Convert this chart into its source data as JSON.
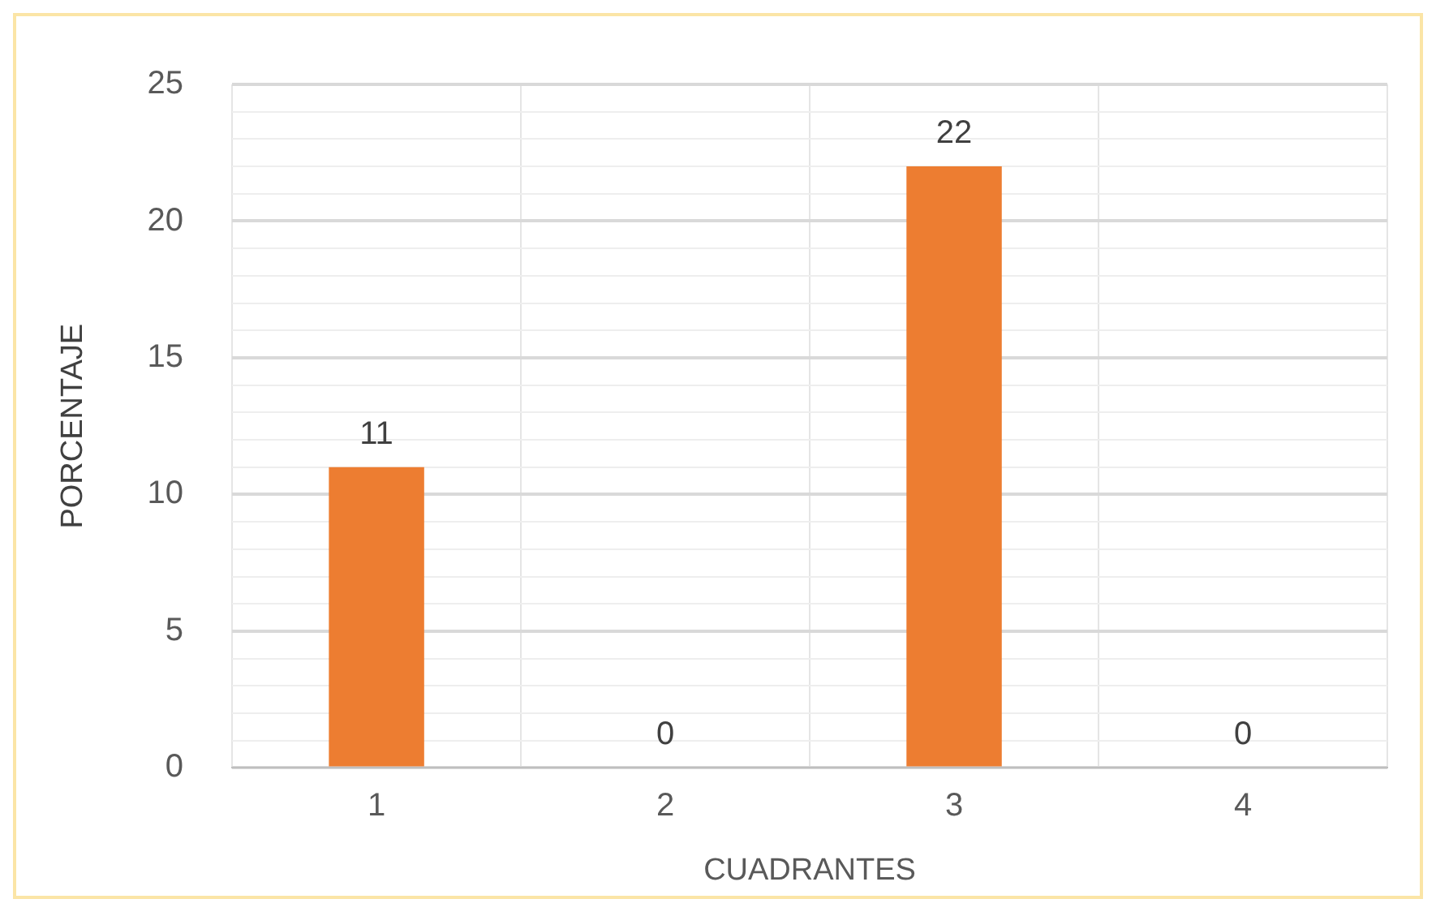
{
  "chart_data": {
    "type": "bar",
    "xlabel": "CUADRANTES",
    "ylabel": "PORCENTAJE",
    "categories": [
      "1",
      "2",
      "3",
      "4"
    ],
    "values": [
      11,
      0,
      22,
      0
    ],
    "color": "#ed7d31",
    "ylim": [
      0,
      25
    ],
    "yticks": [
      0,
      {
        "value": 1,
        "label": null
      },
      {
        "value": 2,
        "label": null
      },
      {
        "value": 3,
        "label": null
      },
      {
        "value": 4,
        "label": null
      },
      5,
      {
        "value": 6,
        "label": null
      },
      {
        "value": 7,
        "label": null
      },
      {
        "value": 8,
        "label": null
      },
      {
        "value": 9,
        "label": null
      },
      10,
      {
        "value": 11,
        "label": null
      },
      {
        "value": 12,
        "label": null
      },
      {
        "value": 13,
        "label": null
      },
      {
        "value": 14,
        "label": null
      },
      15,
      {
        "value": 16,
        "label": null
      },
      {
        "value": 17,
        "label": null
      },
      {
        "value": 18,
        "label": null
      },
      {
        "value": 19,
        "label": null
      },
      20,
      {
        "value": 21,
        "label": null
      },
      {
        "value": 22,
        "label": null
      },
      {
        "value": 23,
        "label": null
      },
      {
        "value": 24,
        "label": null
      },
      25
    ],
    "grid": true,
    "data_labels": true
  }
}
